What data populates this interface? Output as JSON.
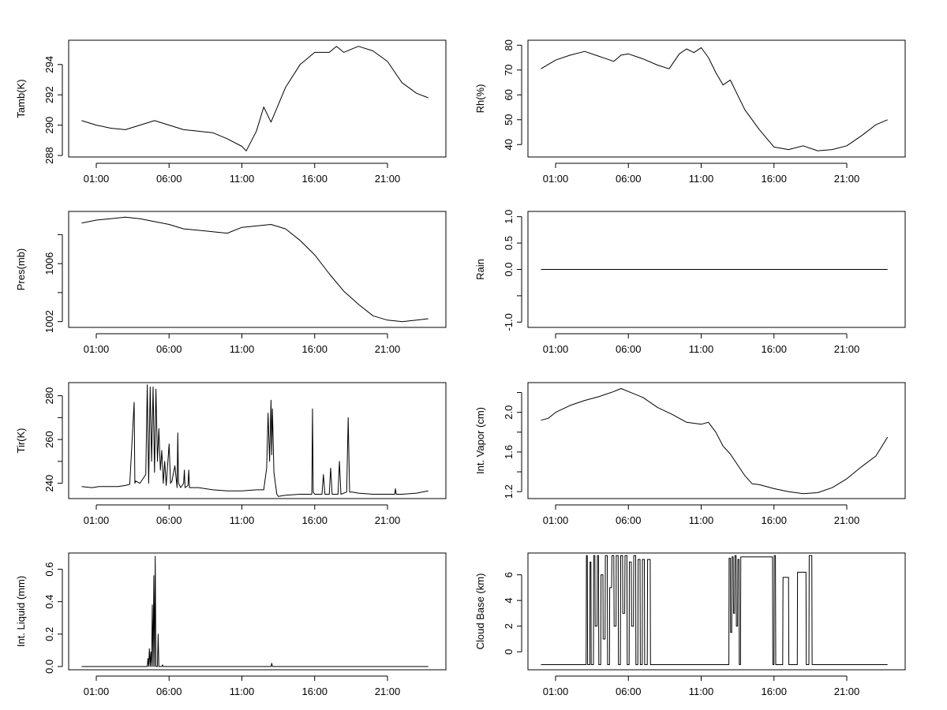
{
  "x_ticks": [
    "01:00",
    "06:00",
    "11:00",
    "16:00",
    "21:00"
  ],
  "x_tick_hours": [
    1,
    6,
    11,
    16,
    21
  ],
  "x_range_hours": [
    0,
    24
  ],
  "line_color": "#000000",
  "chart_data": [
    {
      "type": "line",
      "ylabel": "Tamb(K)",
      "ylim": [
        287.9,
        295.6
      ],
      "y_ticks": [
        288,
        290,
        292,
        294
      ],
      "y_tick_labels": [
        "288",
        "290",
        "292",
        "294"
      ],
      "x": [
        0,
        1,
        2,
        3,
        4,
        5,
        6,
        7,
        8,
        9,
        10,
        11,
        11.3,
        12,
        12.5,
        13,
        14,
        15,
        16,
        17,
        17.5,
        18,
        19,
        20,
        21,
        22,
        23,
        23.8
      ],
      "values": [
        290.3,
        290.0,
        289.8,
        289.7,
        290.0,
        290.3,
        290.0,
        289.7,
        289.6,
        289.5,
        289.1,
        288.6,
        288.3,
        289.6,
        291.2,
        290.2,
        292.5,
        294.0,
        294.8,
        294.8,
        295.2,
        294.8,
        295.2,
        294.9,
        294.2,
        292.8,
        292.1,
        291.8
      ]
    },
    {
      "type": "line",
      "ylabel": "Rh(%)",
      "ylim": [
        35,
        82
      ],
      "y_ticks": [
        40,
        50,
        60,
        70,
        80
      ],
      "y_tick_labels": [
        "40",
        "50",
        "60",
        "70",
        "80"
      ],
      "x": [
        0,
        1,
        2,
        3,
        4,
        5,
        5.5,
        6,
        7,
        8,
        8.8,
        9.5,
        10,
        10.5,
        11,
        11.5,
        12,
        12.5,
        13,
        13.5,
        14,
        15,
        16,
        17,
        18,
        19,
        20,
        21,
        22,
        23,
        23.8
      ],
      "values": [
        70.5,
        74,
        76,
        77.5,
        75.5,
        73.5,
        76,
        76.5,
        74.5,
        72,
        70.5,
        76.5,
        78.5,
        77,
        79,
        75,
        69,
        64,
        66,
        60,
        54,
        46,
        39,
        38,
        39.5,
        37.5,
        38,
        39.5,
        43.5,
        48,
        50
      ]
    },
    {
      "type": "line",
      "ylabel": "Pres(mb)",
      "ylim": [
        1001.6,
        1009.6
      ],
      "y_ticks": [
        1002,
        1004,
        1006,
        1008
      ],
      "y_tick_labels": [
        "1002",
        "",
        "1006",
        ""
      ],
      "x": [
        0,
        1,
        2,
        3,
        4,
        5,
        6,
        7,
        8,
        9,
        10,
        11,
        12,
        13,
        14,
        15,
        16,
        17,
        18,
        19,
        20,
        21,
        22,
        23,
        23.8
      ],
      "values": [
        1008.8,
        1009.0,
        1009.1,
        1009.2,
        1009.1,
        1008.9,
        1008.7,
        1008.4,
        1008.3,
        1008.2,
        1008.1,
        1008.5,
        1008.6,
        1008.7,
        1008.4,
        1007.6,
        1006.6,
        1005.3,
        1004.1,
        1003.2,
        1002.4,
        1002.1,
        1002.0,
        1002.1,
        1002.2
      ]
    },
    {
      "type": "line",
      "ylabel": "Rain",
      "ylim": [
        -1.1,
        1.1
      ],
      "y_ticks": [
        -1.0,
        -0.5,
        0.0,
        0.5,
        1.0
      ],
      "y_tick_labels": [
        "-1.0",
        "",
        "0.0",
        "0.5",
        "1.0"
      ],
      "x": [
        0,
        23.8
      ],
      "values": [
        0.0,
        0.0
      ]
    },
    {
      "type": "line",
      "ylabel": "Tir(K)",
      "ylim": [
        233,
        286
      ],
      "y_ticks": [
        240,
        250,
        260,
        270,
        280
      ],
      "y_tick_labels": [
        "240",
        "",
        "260",
        "",
        "280"
      ],
      "x": [
        0,
        0.7,
        1.2,
        1.8,
        2.5,
        3.0,
        3.3,
        3.6,
        3.65,
        3.7,
        4.0,
        4.4,
        4.5,
        4.6,
        4.7,
        4.8,
        4.9,
        5.0,
        5.1,
        5.2,
        5.3,
        5.4,
        5.5,
        5.6,
        5.7,
        5.8,
        6.0,
        6.1,
        6.2,
        6.4,
        6.55,
        6.6,
        6.65,
        6.8,
        7.0,
        7.05,
        7.1,
        7.3,
        7.35,
        7.4,
        7.5,
        8.0,
        9.0,
        10.0,
        11.0,
        12.0,
        12.5,
        12.7,
        12.8,
        12.9,
        13.0,
        13.05,
        13.1,
        13.2,
        13.3,
        13.4,
        13.5,
        14.0,
        15.0,
        15.8,
        15.85,
        15.9,
        16.0,
        16.5,
        16.6,
        16.7,
        17.0,
        17.1,
        17.2,
        17.6,
        17.7,
        17.8,
        18.2,
        18.3,
        18.4,
        18.6,
        19.0,
        20.0,
        21.0,
        21.5,
        21.55,
        21.6,
        22.0,
        23.0,
        23.8
      ],
      "values": [
        238.5,
        238.0,
        238.5,
        238.5,
        238.5,
        239.0,
        239.5,
        277.0,
        240.0,
        241.0,
        240.0,
        244.0,
        285.0,
        240.0,
        284.0,
        250.0,
        284.0,
        245.0,
        283.0,
        250.0,
        265.0,
        246.0,
        255.0,
        240.0,
        250.0,
        239.0,
        258.0,
        240.0,
        241.0,
        248.0,
        238.0,
        263.0,
        240.0,
        238.0,
        240.0,
        246.0,
        238.0,
        239.0,
        246.0,
        238.0,
        238.0,
        238.0,
        237.0,
        236.5,
        236.5,
        237.0,
        237.0,
        247.0,
        272.0,
        250.0,
        278.0,
        253.0,
        274.0,
        245.0,
        240.0,
        235.0,
        234.0,
        234.5,
        235.0,
        235.0,
        274.0,
        236.0,
        235.0,
        235.0,
        244.0,
        235.0,
        235.0,
        247.0,
        235.0,
        235.0,
        250.0,
        235.0,
        236.0,
        270.0,
        236.0,
        236.0,
        235.5,
        235.0,
        235.0,
        235.0,
        237.5,
        235.0,
        235.0,
        235.5,
        236.5
      ]
    },
    {
      "type": "line",
      "ylabel": "Int. Vapor (cm)",
      "ylim": [
        1.13,
        2.3
      ],
      "y_ticks": [
        1.2,
        1.4,
        1.6,
        1.8,
        2.0,
        2.2
      ],
      "y_tick_labels": [
        "1.2",
        "",
        "1.6",
        "",
        "2.0",
        ""
      ],
      "x": [
        0,
        0.5,
        1,
        2,
        3,
        4,
        5,
        5.5,
        6,
        7,
        8,
        9,
        10,
        11,
        11.5,
        12,
        12.5,
        13,
        14,
        14.5,
        15,
        16,
        17,
        18,
        19,
        20,
        21,
        22,
        23,
        23.8
      ],
      "values": [
        1.92,
        1.94,
        2.0,
        2.07,
        2.12,
        2.16,
        2.21,
        2.24,
        2.21,
        2.15,
        2.05,
        1.98,
        1.9,
        1.88,
        1.9,
        1.8,
        1.66,
        1.58,
        1.36,
        1.28,
        1.27,
        1.23,
        1.2,
        1.18,
        1.19,
        1.24,
        1.33,
        1.45,
        1.56,
        1.75
      ]
    },
    {
      "type": "line",
      "ylabel": "Int. Liquid (mm)",
      "ylim": [
        -0.02,
        0.7
      ],
      "y_ticks": [
        0.0,
        0.2,
        0.4,
        0.6
      ],
      "y_tick_labels": [
        "0.0",
        "0.2",
        "0.4",
        "0.6"
      ],
      "x": [
        0,
        4.5,
        4.55,
        4.6,
        4.65,
        4.7,
        4.75,
        4.8,
        4.85,
        4.9,
        4.95,
        5.0,
        5.05,
        5.1,
        5.2,
        5.25,
        5.3,
        5.35,
        5.5,
        5.55,
        5.6,
        13.0,
        13.05,
        13.1,
        23.8
      ],
      "values": [
        0.0,
        0.0,
        0.05,
        0.0,
        0.11,
        0.0,
        0.09,
        0.0,
        0.38,
        0.0,
        0.56,
        0.0,
        0.68,
        0.0,
        0.0,
        0.2,
        0.0,
        0.0,
        0.0,
        0.01,
        0.0,
        0.0,
        0.02,
        0.0,
        0.0
      ]
    },
    {
      "type": "line",
      "ylabel": "Cloud Base (km)",
      "ylim": [
        -1.4,
        7.7
      ],
      "y_ticks": [
        0,
        2,
        4,
        6
      ],
      "y_tick_labels": [
        "0",
        "2",
        "4",
        "6"
      ],
      "x": [
        0,
        3.1,
        3.12,
        3.18,
        3.2,
        3.35,
        3.37,
        3.43,
        3.45,
        3.6,
        3.62,
        3.7,
        3.72,
        3.85,
        3.87,
        3.95,
        3.97,
        4.1,
        4.12,
        4.25,
        4.27,
        4.4,
        4.42,
        4.55,
        4.57,
        4.7,
        4.72,
        4.85,
        4.87,
        5.0,
        5.02,
        5.15,
        5.17,
        5.3,
        5.32,
        5.45,
        5.47,
        5.6,
        5.62,
        5.75,
        5.77,
        5.9,
        5.92,
        6.05,
        6.07,
        6.2,
        6.22,
        6.35,
        6.37,
        6.5,
        6.52,
        6.65,
        6.67,
        6.8,
        6.82,
        6.95,
        6.97,
        7.1,
        7.12,
        7.3,
        7.32,
        7.5,
        7.52,
        12.9,
        12.92,
        13.0,
        13.02,
        13.1,
        13.12,
        13.2,
        13.22,
        13.3,
        13.32,
        13.4,
        13.42,
        13.5,
        13.52,
        13.6,
        13.62,
        13.7,
        13.72,
        15.9,
        15.92,
        16.0,
        16.02,
        16.1,
        16.12,
        16.6,
        16.62,
        17.0,
        17.02,
        17.6,
        17.62,
        18.2,
        18.22,
        18.4,
        18.42,
        18.6,
        18.62,
        23.8
      ],
      "values": [
        -1.0,
        -1.0,
        7.5,
        7.5,
        -1.0,
        -1.0,
        7.0,
        7.0,
        -1.0,
        -1.0,
        7.5,
        7.5,
        2.0,
        2.0,
        7.5,
        7.5,
        -1.0,
        -1.0,
        6.0,
        6.0,
        1.0,
        1.0,
        7.5,
        7.5,
        -1.0,
        -1.0,
        5.0,
        5.0,
        7.5,
        7.5,
        2.0,
        2.0,
        7.5,
        7.5,
        -1.0,
        -1.0,
        7.5,
        7.5,
        3.0,
        3.0,
        7.5,
        7.5,
        -1.0,
        -1.0,
        7.0,
        7.0,
        2.0,
        2.0,
        7.5,
        7.5,
        -1.0,
        -1.0,
        7.2,
        7.2,
        -1.0,
        -1.0,
        7.2,
        7.2,
        -1.0,
        -1.0,
        7.2,
        7.2,
        -1.0,
        -1.0,
        7.3,
        7.3,
        1.5,
        1.5,
        7.4,
        7.4,
        3.0,
        3.0,
        7.5,
        7.5,
        2.0,
        2.0,
        7.2,
        7.2,
        -1.0,
        -1.0,
        7.4,
        7.4,
        -1.0,
        -1.0,
        7.5,
        7.5,
        -1.0,
        -1.0,
        5.8,
        5.8,
        -1.0,
        -1.0,
        6.2,
        6.2,
        -1.0,
        -1.0,
        7.5,
        7.5,
        -1.0,
        -1.0
      ]
    }
  ]
}
